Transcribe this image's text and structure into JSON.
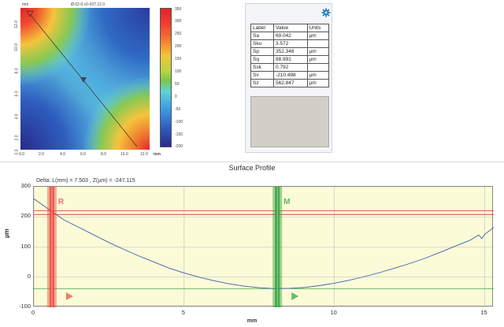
{
  "map": {
    "header_left": "mm",
    "header_center": "Ø.62-0.c0-037.12.0",
    "x_ticks": [
      "0.0",
      "2.0",
      "4.0",
      "6.0",
      "8.0",
      "10.0",
      "12.0"
    ],
    "y_ticks": [
      "12.0",
      "10.0",
      "8.0",
      "6.0",
      "4.0",
      "2.0",
      "0.0"
    ],
    "corner_label": "mm",
    "colorbar_ticks": [
      "350",
      "300",
      "250",
      "200",
      "150",
      "100",
      "50",
      "0",
      "-50",
      "-100",
      "-150",
      "-200"
    ],
    "colors": {
      "red": "#e2232b",
      "yellow": "#f5c43c",
      "green": "#7ac846",
      "cyan": "#5ed4d5",
      "blue": "#2f5fbf"
    }
  },
  "params": {
    "settings_icon": "gear-icon",
    "headers": [
      "Label",
      "Value",
      "Units"
    ],
    "rows": [
      {
        "label": "Sa",
        "value": "69.042",
        "unit": "µm"
      },
      {
        "label": "Sku",
        "value": "3.572",
        "unit": ""
      },
      {
        "label": "Sp",
        "value": "352.348",
        "unit": "µm"
      },
      {
        "label": "Sq",
        "value": "88.991",
        "unit": "µm"
      },
      {
        "label": "Ssk",
        "value": "0.792",
        "unit": ""
      },
      {
        "label": "Sv",
        "value": "-210.498",
        "unit": "µm"
      },
      {
        "label": "Sz",
        "value": "562.847",
        "unit": "µm"
      }
    ]
  },
  "profile": {
    "title": "Surface Profile",
    "delta": "Delta:  L(mm) = 7.503 ,  Z(µm) = -247.115",
    "cursor_r": "R",
    "cursor_m": "M",
    "xlabel": "mm",
    "ylabel": "µm",
    "colors": {
      "cursor_r": "#e8463d",
      "cursor_m": "#2e9e3a",
      "curve": "#3b5fae",
      "ref_red": "#c0392b",
      "ref_green": "#3aa043",
      "background": "#fbfbd8"
    }
  },
  "chart_data": {
    "type": "line",
    "title": "Surface Profile",
    "xlabel": "mm",
    "ylabel": "µm",
    "xlim": [
      0,
      15.3
    ],
    "ylim": [
      -100,
      300
    ],
    "x_ticks": [
      0,
      5,
      10,
      15
    ],
    "y_ticks": [
      300,
      200,
      100,
      0,
      -100
    ],
    "grid": true,
    "series": [
      {
        "x": [
          0,
          0.5,
          1,
          1.5,
          2,
          2.5,
          3,
          3.5,
          4,
          4.5,
          5,
          5.5,
          6,
          6.5,
          7,
          7.5,
          8,
          8.5,
          9,
          9.5,
          10,
          10.5,
          11,
          11.5,
          12,
          12.5,
          13,
          13.5,
          14,
          14.5,
          14.8,
          14.9,
          15,
          15.3
        ],
        "y": [
          260,
          225,
          190,
          165,
          140,
          115,
          92,
          70,
          50,
          30,
          14,
          0,
          -12,
          -22,
          -30,
          -35,
          -38,
          -37,
          -34,
          -28,
          -20,
          -10,
          2,
          15,
          30,
          45,
          62,
          82,
          102,
          122,
          140,
          128,
          142,
          165
        ]
      }
    ],
    "reference_lines": [
      {
        "y": 220,
        "color": "red"
      },
      {
        "y": 208,
        "color": "red"
      },
      {
        "y": -38,
        "color": "green"
      }
    ],
    "cursors": [
      {
        "label": "R",
        "x": 0.6
      },
      {
        "label": "M",
        "x": 8.1
      }
    ]
  }
}
